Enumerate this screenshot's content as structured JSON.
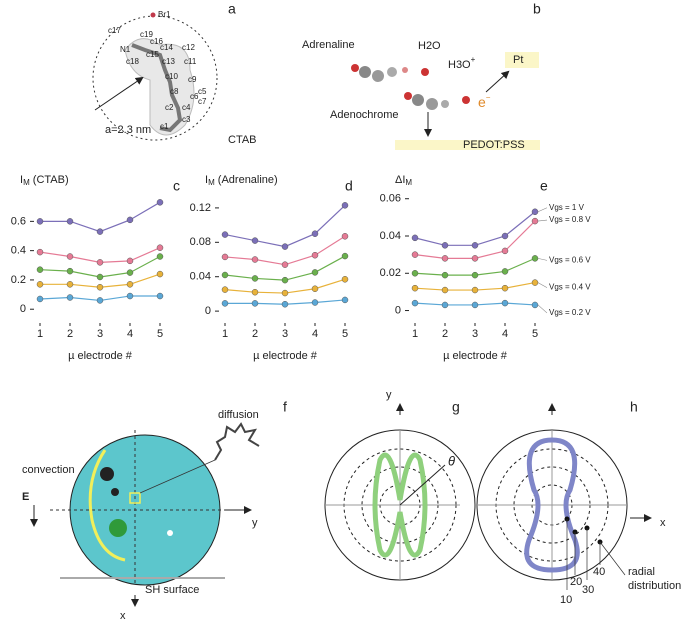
{
  "panel_labels": [
    "a",
    "b",
    "c",
    "d",
    "e",
    "f",
    "g",
    "h"
  ],
  "panel_a": {
    "atoms": [
      "Br1",
      "c17",
      "c19",
      "c16",
      "c14",
      "N1",
      "c15",
      "c18",
      "c13",
      "c12",
      "c11",
      "c10",
      "c9",
      "c8",
      "c6",
      "c5",
      "c7",
      "c2",
      "c4",
      "c3",
      "c1"
    ],
    "radius_label": "a=2.3 nm",
    "name": "CTAB"
  },
  "panel_b": {
    "adrenaline": "Adrenaline",
    "water": "H2O",
    "hydronium": [
      "H3O",
      "+"
    ],
    "electron": "e",
    "electron_sign": "−",
    "pt": "Pt",
    "adenochrome": "Adenochrome",
    "substrate": "PEDOT:PSS"
  },
  "chart_data": [
    {
      "type": "line",
      "title": [
        "I",
        "M",
        " (CTAB)"
      ],
      "xlabel": "µ electrode #",
      "categories": [
        "1",
        "2",
        "3",
        "4",
        "5"
      ],
      "ylim": [
        -0.06,
        0.78
      ],
      "yticks": [
        0,
        0.2,
        0.4,
        0.6
      ],
      "series": [
        {
          "color": "#7b6fb8",
          "values": [
            0.6,
            0.6,
            0.53,
            0.61,
            0.73
          ]
        },
        {
          "color": "#e57a95",
          "values": [
            0.39,
            0.36,
            0.32,
            0.33,
            0.42
          ]
        },
        {
          "color": "#6ab04c",
          "values": [
            0.27,
            0.26,
            0.22,
            0.25,
            0.36
          ]
        },
        {
          "color": "#e8b23a",
          "values": [
            0.17,
            0.17,
            0.15,
            0.17,
            0.24
          ]
        },
        {
          "color": "#5aa7d6",
          "values": [
            0.07,
            0.08,
            0.06,
            0.09,
            0.09
          ]
        }
      ]
    },
    {
      "type": "line",
      "title": [
        "I",
        "M",
        " (Adrenaline)"
      ],
      "xlabel": "µ electrode #",
      "categories": [
        "1",
        "2",
        "3",
        "4",
        "5"
      ],
      "ylim": [
        -0.008,
        0.135
      ],
      "yticks": [
        0,
        0.04,
        0.08,
        0.12
      ],
      "series": [
        {
          "color": "#7b6fb8",
          "values": [
            0.089,
            0.082,
            0.075,
            0.09,
            0.123
          ]
        },
        {
          "color": "#e57a95",
          "values": [
            0.063,
            0.06,
            0.054,
            0.065,
            0.087
          ]
        },
        {
          "color": "#6ab04c",
          "values": [
            0.042,
            0.038,
            0.036,
            0.045,
            0.064
          ]
        },
        {
          "color": "#e8b23a",
          "values": [
            0.025,
            0.022,
            0.021,
            0.026,
            0.037
          ]
        },
        {
          "color": "#5aa7d6",
          "values": [
            0.009,
            0.009,
            0.008,
            0.01,
            0.013
          ]
        }
      ]
    },
    {
      "type": "line",
      "title": [
        "ΔI",
        "M",
        ""
      ],
      "xlabel": "µ electrode #",
      "categories": [
        "1",
        "2",
        "3",
        "4",
        "5"
      ],
      "ylim": [
        -0.004,
        0.062
      ],
      "yticks": [
        0,
        0.02,
        0.04,
        0.06
      ],
      "series": [
        {
          "name": "Vgs = 1 V",
          "color": "#7b6fb8",
          "values": [
            0.039,
            0.035,
            0.035,
            0.04,
            0.053
          ]
        },
        {
          "name": "Vgs = 0.8 V",
          "color": "#e57a95",
          "values": [
            0.03,
            0.028,
            0.028,
            0.032,
            0.048
          ]
        },
        {
          "name": "Vgs = 0.6 V",
          "color": "#6ab04c",
          "values": [
            0.02,
            0.019,
            0.019,
            0.021,
            0.028
          ]
        },
        {
          "name": "Vgs = 0.4 V",
          "color": "#e8b23a",
          "values": [
            0.012,
            0.011,
            0.011,
            0.012,
            0.015
          ]
        },
        {
          "name": "Vgs = 0.2 V",
          "color": "#5aa7d6",
          "values": [
            0.004,
            0.003,
            0.003,
            0.004,
            0.003
          ]
        }
      ]
    }
  ],
  "panel_f": {
    "diffusion": "diffusion",
    "convection": "convection",
    "field": "E",
    "y_axis": "y",
    "x_axis": "x",
    "surface": "SH surface"
  },
  "panel_g": {
    "y_axis": "y",
    "angle": "θ"
  },
  "panel_h": {
    "x_axis": "x",
    "radii": [
      "10",
      "20",
      "30",
      "40"
    ],
    "note": [
      "radial",
      "distribution"
    ]
  }
}
